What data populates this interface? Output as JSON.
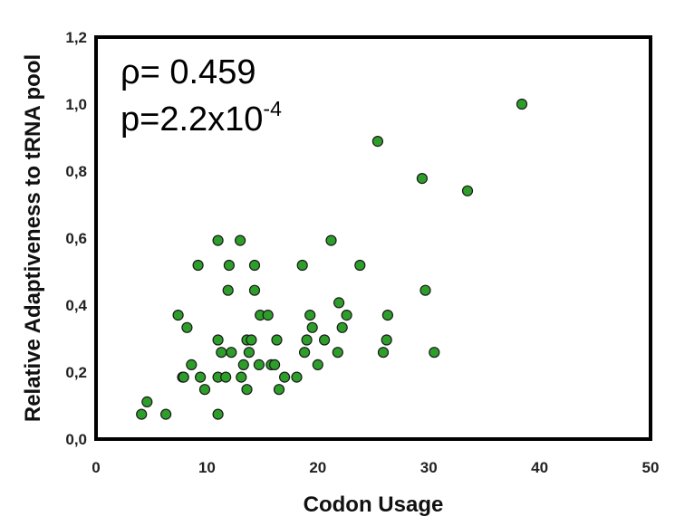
{
  "chart_data": {
    "type": "scatter",
    "xlabel": "Codon Usage",
    "ylabel": "Relative Adaptiveness to tRNA pool",
    "xlim": [
      0,
      50
    ],
    "ylim": [
      0,
      1.2
    ],
    "xticks": [
      "0",
      "10",
      "20",
      "30",
      "40",
      "50"
    ],
    "yticks": [
      "0,0",
      "0,2",
      "0,4",
      "0,6",
      "0,8",
      "1,0",
      "1,2"
    ],
    "grid": false,
    "legend": "none",
    "marker_color": "#2e9e2a",
    "annotation": {
      "rho_text": "ρ= 0.459",
      "p_text": "p=2.2x10",
      "p_exponent": "-4"
    },
    "points": [
      {
        "x": 4.1,
        "y": 0.074
      },
      {
        "x": 4.6,
        "y": 0.111
      },
      {
        "x": 6.3,
        "y": 0.074
      },
      {
        "x": 7.4,
        "y": 0.37
      },
      {
        "x": 7.8,
        "y": 0.185
      },
      {
        "x": 7.9,
        "y": 0.185
      },
      {
        "x": 8.2,
        "y": 0.333
      },
      {
        "x": 8.6,
        "y": 0.222
      },
      {
        "x": 9.2,
        "y": 0.519
      },
      {
        "x": 9.4,
        "y": 0.185
      },
      {
        "x": 9.8,
        "y": 0.148
      },
      {
        "x": 11.0,
        "y": 0.593
      },
      {
        "x": 11.0,
        "y": 0.296
      },
      {
        "x": 11.0,
        "y": 0.185
      },
      {
        "x": 11.0,
        "y": 0.074
      },
      {
        "x": 11.3,
        "y": 0.259
      },
      {
        "x": 11.7,
        "y": 0.185
      },
      {
        "x": 11.9,
        "y": 0.444
      },
      {
        "x": 12.0,
        "y": 0.519
      },
      {
        "x": 12.2,
        "y": 0.259
      },
      {
        "x": 13.0,
        "y": 0.593
      },
      {
        "x": 13.1,
        "y": 0.185
      },
      {
        "x": 13.3,
        "y": 0.222
      },
      {
        "x": 13.6,
        "y": 0.148
      },
      {
        "x": 13.6,
        "y": 0.296
      },
      {
        "x": 13.8,
        "y": 0.259
      },
      {
        "x": 14.0,
        "y": 0.296
      },
      {
        "x": 14.3,
        "y": 0.444
      },
      {
        "x": 14.3,
        "y": 0.519
      },
      {
        "x": 14.7,
        "y": 0.222
      },
      {
        "x": 14.8,
        "y": 0.37
      },
      {
        "x": 15.5,
        "y": 0.37
      },
      {
        "x": 15.8,
        "y": 0.222
      },
      {
        "x": 16.1,
        "y": 0.222
      },
      {
        "x": 16.3,
        "y": 0.296
      },
      {
        "x": 16.5,
        "y": 0.148
      },
      {
        "x": 17.0,
        "y": 0.185
      },
      {
        "x": 18.1,
        "y": 0.185
      },
      {
        "x": 18.6,
        "y": 0.519
      },
      {
        "x": 18.8,
        "y": 0.259
      },
      {
        "x": 19.0,
        "y": 0.296
      },
      {
        "x": 19.3,
        "y": 0.37
      },
      {
        "x": 19.5,
        "y": 0.333
      },
      {
        "x": 20.0,
        "y": 0.222
      },
      {
        "x": 20.6,
        "y": 0.296
      },
      {
        "x": 21.2,
        "y": 0.593
      },
      {
        "x": 21.8,
        "y": 0.259
      },
      {
        "x": 21.9,
        "y": 0.407
      },
      {
        "x": 22.2,
        "y": 0.333
      },
      {
        "x": 22.6,
        "y": 0.37
      },
      {
        "x": 23.8,
        "y": 0.519
      },
      {
        "x": 25.4,
        "y": 0.889
      },
      {
        "x": 25.9,
        "y": 0.259
      },
      {
        "x": 26.2,
        "y": 0.296
      },
      {
        "x": 26.3,
        "y": 0.37
      },
      {
        "x": 29.4,
        "y": 0.778
      },
      {
        "x": 29.7,
        "y": 0.444
      },
      {
        "x": 30.5,
        "y": 0.259
      },
      {
        "x": 33.5,
        "y": 0.741
      },
      {
        "x": 38.4,
        "y": 1.0
      }
    ]
  }
}
